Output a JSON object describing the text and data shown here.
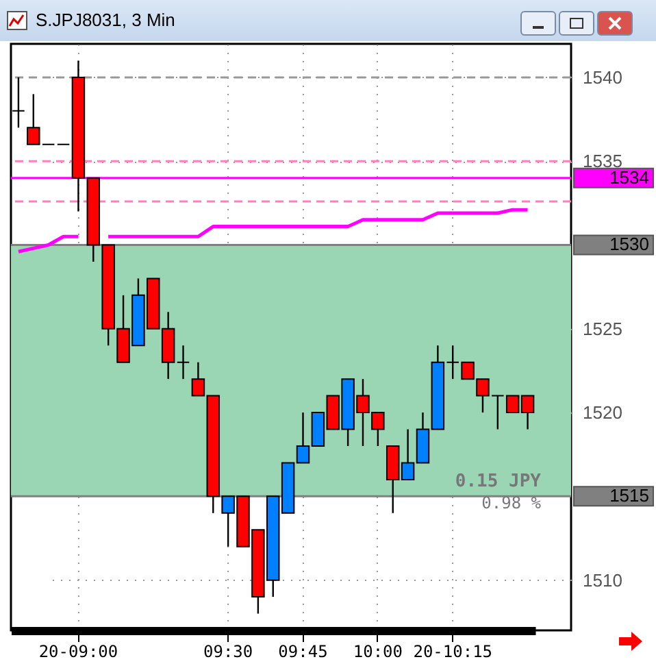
{
  "chart_data": {
    "type": "candlestick",
    "title": "S.JPJ8031, 3 Min",
    "categories": [
      null,
      null,
      null,
      null,
      "20-09:00",
      null,
      null,
      null,
      null,
      null,
      null,
      null,
      null,
      null,
      "09:30",
      null,
      null,
      null,
      null,
      "09:45",
      null,
      null,
      null,
      null,
      "10:00",
      null,
      null,
      null,
      null,
      "20-10:15",
      null,
      null,
      null,
      null,
      null
    ],
    "ohlc": [
      [
        1538,
        1540,
        1537,
        1538
      ],
      [
        1537,
        1539,
        1536,
        1536
      ],
      [
        1536,
        1536,
        1536,
        1536
      ],
      [
        1536,
        1536,
        1536,
        1536
      ],
      [
        1540,
        1541,
        1532,
        1534
      ],
      [
        1534,
        1534,
        1529,
        1530
      ],
      [
        1530,
        1530,
        1524,
        1525
      ],
      [
        1525,
        1527,
        1523,
        1523
      ],
      [
        1524,
        1528,
        1524,
        1527
      ],
      [
        1528,
        1528,
        1525,
        1525
      ],
      [
        1525,
        1526,
        1522,
        1523
      ],
      [
        1523,
        1524,
        1522,
        1523
      ],
      [
        1522,
        1523,
        1521,
        1521
      ],
      [
        1521,
        1521,
        1514,
        1515
      ],
      [
        1514,
        1515,
        1512,
        1515
      ],
      [
        1515,
        1515,
        1512,
        1512
      ],
      [
        1513,
        1513,
        1508,
        1509
      ],
      [
        1510,
        1515,
        1509,
        1515
      ],
      [
        1514,
        1517,
        1514,
        1517
      ],
      [
        1517,
        1520,
        1517,
        1518
      ],
      [
        1518,
        1520,
        1518,
        1520
      ],
      [
        1521,
        1521,
        1519,
        1519
      ],
      [
        1519,
        1522,
        1518,
        1522
      ],
      [
        1521,
        1522,
        1518,
        1520
      ],
      [
        1520,
        1520,
        1518,
        1519
      ],
      [
        1518,
        1518,
        1514,
        1516
      ],
      [
        1516,
        1519,
        1516,
        1517
      ],
      [
        1517,
        1520,
        1517,
        1519
      ],
      [
        1519,
        1524,
        1519,
        1523
      ],
      [
        1523,
        1524,
        1522,
        1523
      ],
      [
        1523,
        1523,
        1522,
        1522
      ],
      [
        1522,
        1522,
        1520,
        1521
      ],
      [
        1521,
        1521,
        1519,
        1521
      ],
      [
        1521,
        1521,
        1520,
        1520
      ],
      [
        1521,
        1521,
        1519,
        1520
      ]
    ],
    "colors": [
      "#000000",
      "#ff0000",
      "#000000",
      "#000000",
      "#ff0000",
      "#ff0000",
      "#ff0000",
      "#ff0000",
      "#0080ff",
      "#ff0000",
      "#ff0000",
      "#000000",
      "#ff0000",
      "#ff0000",
      "#0080ff",
      "#ff0000",
      "#ff0000",
      "#0080ff",
      "#0080ff",
      "#0080ff",
      "#0080ff",
      "#ff0000",
      "#0080ff",
      "#ff0000",
      "#ff0000",
      "#ff0000",
      "#0080ff",
      "#0080ff",
      "#0080ff",
      "#000000",
      "#ff0000",
      "#ff0000",
      "#000000",
      "#ff0000",
      "#ff0000"
    ],
    "series": [
      {
        "type": "line",
        "color": "#ff00ff",
        "values": [
          1529.6,
          1529.8,
          1530.0,
          1530.5,
          1530.5,
          null,
          1530.5,
          1530.5,
          1530.5,
          1530.5,
          1530.5,
          1530.5,
          1530.5,
          1531.1,
          1531.1,
          1531.1,
          1531.1,
          1531.1,
          1531.1,
          1531.1,
          1531.1,
          1531.1,
          1531.1,
          1531.5,
          1531.5,
          1531.5,
          1531.5,
          1531.5,
          1531.9,
          1531.9,
          1531.9,
          1531.9,
          1531.9,
          1532.1,
          1532.1
        ]
      }
    ],
    "ylim": [
      1507,
      1542
    ],
    "yticks": [
      1510,
      1520,
      1525,
      1535,
      1540
    ],
    "grid": true,
    "ref_lines": [
      {
        "axis": "y",
        "value": 1540,
        "color": "#999999",
        "line_style": "dashed"
      },
      {
        "axis": "y",
        "value": 1535,
        "color": "#ff80c0",
        "line_style": "dashed"
      },
      {
        "axis": "y",
        "value": 1534,
        "label": "1534",
        "color": "#ff00ff",
        "line_style": "solid"
      },
      {
        "axis": "y",
        "value": 1532.6,
        "color": "#ff80c0",
        "line_style": "dashed"
      },
      {
        "axis": "y",
        "value": 1530,
        "label": "1530",
        "color": "#808080",
        "line_style": "solid"
      },
      {
        "axis": "y",
        "value": 1515,
        "label": "1515",
        "color": "#808080",
        "line_style": "solid"
      }
    ],
    "bands": [
      {
        "axis": "y",
        "from": 1515,
        "to": 1530,
        "color": "#9ad6b4"
      }
    ],
    "annotations": [
      "0.15 JPY",
      "0.98 %"
    ]
  }
}
